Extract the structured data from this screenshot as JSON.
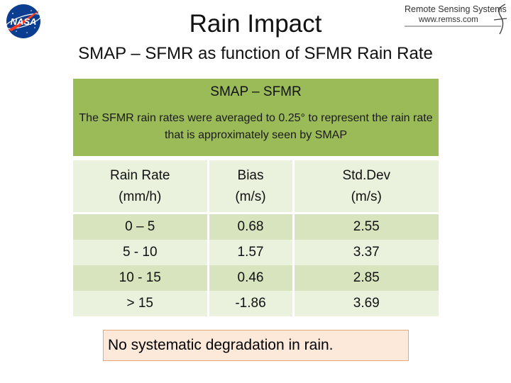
{
  "header": {
    "title": "Rain Impact",
    "subtitle": "SMAP – SFMR as function of SFMR Rain Rate",
    "nasa_logo_text": "NASA",
    "remss_name": "Remote Sensing Systems",
    "remss_url": "www.remss.com"
  },
  "panel": {
    "heading": "SMAP – SFMR",
    "text": "The SFMR rain rates were averaged to 0.25° to represent the rain rate that is approximately seen by SMAP"
  },
  "table": {
    "headers": [
      {
        "line1": "Rain Rate",
        "line2": "(mm/h)"
      },
      {
        "line1": "Bias",
        "line2": "(m/s)"
      },
      {
        "line1": "Std.Dev",
        "line2": "(m/s)"
      }
    ],
    "rows": [
      {
        "rain_rate": "0 – 5",
        "bias": "0.68",
        "std_dev": "2.55"
      },
      {
        "rain_rate": "5 - 10",
        "bias": "1.57",
        "std_dev": "3.37"
      },
      {
        "rain_rate": "10 - 15",
        "bias": "0.46",
        "std_dev": "2.85"
      },
      {
        "rain_rate": "> 15",
        "bias": "-1.86",
        "std_dev": "3.69"
      }
    ]
  },
  "note": "No systematic degradation in rain.",
  "colors": {
    "panel_green": "#9bbb59",
    "row_dark": "#d7e4bd",
    "row_light": "#eaf1dd",
    "note_bg": "#fde9d9",
    "note_border": "#e8a87c",
    "nasa_blue": "#0b3d91",
    "nasa_red": "#fc3d21"
  }
}
